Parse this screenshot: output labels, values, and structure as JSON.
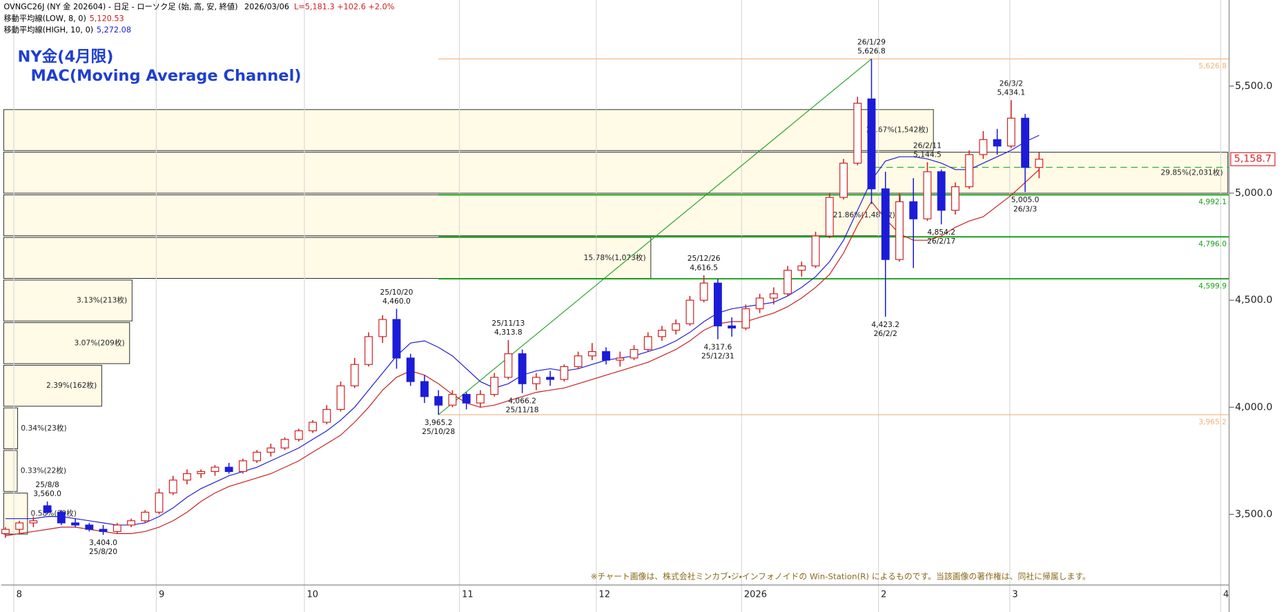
{
  "header": {
    "title": "OVNGC26J (NY 金 202604) - 日足 - ローソク足 (始, 高, 安, 終値)",
    "date": "2026/03/06",
    "quote": "L=5,181.3 +102.6 +2.0%",
    "ma_low_label": "移動平均線(LOW, 8, 0)",
    "ma_low_value": "5,120.53",
    "ma_high_label": "移動平均線(HIGH, 10, 0)",
    "ma_high_value": "5,272.08"
  },
  "chart_data": {
    "type": "candlestick",
    "title": "NY金(4月限)",
    "subtitle": "MAC(Moving Average Channel)",
    "xlim": [
      -0.3,
      87.6
    ],
    "xticks": [
      {
        "value": 0.6,
        "label": "8"
      },
      {
        "value": 10.8,
        "label": "9"
      },
      {
        "value": 21.4,
        "label": "10"
      },
      {
        "value": 32.5,
        "label": "11"
      },
      {
        "value": 42.3,
        "label": "12"
      },
      {
        "value": 52.7,
        "label": "2026"
      },
      {
        "value": 62.5,
        "label": "2"
      },
      {
        "value": 71.9,
        "label": "3"
      },
      {
        "value": 87.0,
        "label": "4"
      }
    ],
    "ylim": [
      3170,
      5902
    ],
    "yticks": [
      {
        "value": 3500,
        "label": "3,500.0"
      },
      {
        "value": 4000,
        "label": "4,000.0"
      },
      {
        "value": 4500,
        "label": "4,500.0"
      },
      {
        "value": 5000,
        "label": "5,000.0"
      },
      {
        "value": 5500,
        "label": "5,500.0"
      }
    ],
    "up_color": "#d02020",
    "down_color": "#1c1cd8",
    "categories": [
      null,
      null,
      null,
      "25/8/8",
      null,
      null,
      null,
      "25/8/20",
      null,
      null,
      null,
      null,
      null,
      null,
      null,
      null,
      null,
      null,
      null,
      null,
      null,
      null,
      null,
      null,
      null,
      null,
      null,
      null,
      "25/10/20",
      null,
      null,
      "25/10/28",
      null,
      null,
      null,
      null,
      "25/11/13",
      "25/11/18",
      null,
      null,
      null,
      null,
      null,
      null,
      null,
      null,
      null,
      null,
      null,
      null,
      "25/12/26",
      "25/12/31",
      null,
      null,
      null,
      null,
      null,
      null,
      null,
      null,
      null,
      null,
      "26/1/29",
      "26/2/2",
      null,
      null,
      "26/2/11",
      "26/2/17",
      null,
      null,
      null,
      null,
      "26/3/2",
      "26/3/3",
      null
    ],
    "candles": [
      [
        3410,
        3440,
        3390,
        3430
      ],
      [
        3430,
        3470,
        3410,
        3460
      ],
      [
        3460,
        3490,
        3440,
        3470
      ],
      [
        3540,
        3560,
        3500,
        3510
      ],
      [
        3510,
        3520,
        3450,
        3460
      ],
      [
        3460,
        3480,
        3440,
        3450
      ],
      [
        3450,
        3460,
        3420,
        3430
      ],
      [
        3430,
        3450,
        3404,
        3420
      ],
      [
        3420,
        3460,
        3410,
        3450
      ],
      [
        3450,
        3480,
        3440,
        3470
      ],
      [
        3470,
        3520,
        3460,
        3510
      ],
      [
        3510,
        3620,
        3500,
        3600
      ],
      [
        3600,
        3680,
        3590,
        3660
      ],
      [
        3660,
        3710,
        3640,
        3690
      ],
      [
        3690,
        3710,
        3670,
        3700
      ],
      [
        3700,
        3730,
        3680,
        3720
      ],
      [
        3720,
        3740,
        3690,
        3700
      ],
      [
        3700,
        3760,
        3690,
        3750
      ],
      [
        3750,
        3800,
        3740,
        3790
      ],
      [
        3790,
        3830,
        3770,
        3810
      ],
      [
        3810,
        3860,
        3800,
        3850
      ],
      [
        3850,
        3900,
        3840,
        3890
      ],
      [
        3890,
        3940,
        3880,
        3930
      ],
      [
        3930,
        4010,
        3920,
        3990
      ],
      [
        3990,
        4120,
        3980,
        4100
      ],
      [
        4100,
        4230,
        4090,
        4200
      ],
      [
        4200,
        4350,
        4190,
        4330
      ],
      [
        4330,
        4430,
        4300,
        4410
      ],
      [
        4410,
        4460,
        4180,
        4230
      ],
      [
        4230,
        4250,
        4100,
        4120
      ],
      [
        4120,
        4150,
        4020,
        4050
      ],
      [
        4050,
        4080,
        3965.2,
        4010
      ],
      [
        4010,
        4080,
        4000,
        4060
      ],
      [
        4060,
        4070,
        3990,
        4020
      ],
      [
        4020,
        4080,
        4000,
        4060
      ],
      [
        4060,
        4160,
        4050,
        4140
      ],
      [
        4140,
        4313.8,
        4130,
        4250
      ],
      [
        4250,
        4270,
        4066.2,
        4110
      ],
      [
        4110,
        4160,
        4080,
        4140
      ],
      [
        4140,
        4170,
        4100,
        4130
      ],
      [
        4130,
        4200,
        4120,
        4190
      ],
      [
        4190,
        4260,
        4180,
        4240
      ],
      [
        4240,
        4300,
        4220,
        4260
      ],
      [
        4260,
        4280,
        4200,
        4220
      ],
      [
        4220,
        4260,
        4190,
        4230
      ],
      [
        4230,
        4290,
        4220,
        4270
      ],
      [
        4270,
        4350,
        4260,
        4330
      ],
      [
        4330,
        4380,
        4310,
        4360
      ],
      [
        4360,
        4410,
        4340,
        4390
      ],
      [
        4390,
        4520,
        4380,
        4500
      ],
      [
        4500,
        4616.5,
        4490,
        4580
      ],
      [
        4580,
        4600,
        4317.6,
        4380
      ],
      [
        4380,
        4420,
        4330,
        4370
      ],
      [
        4370,
        4480,
        4360,
        4460
      ],
      [
        4460,
        4530,
        4440,
        4510
      ],
      [
        4510,
        4560,
        4480,
        4530
      ],
      [
        4530,
        4660,
        4520,
        4640
      ],
      [
        4640,
        4680,
        4610,
        4660
      ],
      [
        4660,
        4820,
        4650,
        4800
      ],
      [
        4800,
        5000,
        4790,
        4980
      ],
      [
        4980,
        5160,
        4970,
        5140
      ],
      [
        5140,
        5450,
        5130,
        5420
      ],
      [
        5440,
        5626.8,
        4950,
        5020
      ],
      [
        5020,
        5100,
        4423.2,
        4690
      ],
      [
        4690,
        5000,
        4680,
        4960
      ],
      [
        4960,
        5070,
        4650,
        4880
      ],
      [
        4880,
        5144.5,
        4870,
        5100
      ],
      [
        5100,
        5110,
        4854.2,
        4920
      ],
      [
        4920,
        5050,
        4900,
        5030
      ],
      [
        5030,
        5200,
        5020,
        5180
      ],
      [
        5180,
        5290,
        5160,
        5250
      ],
      [
        5250,
        5300,
        5180,
        5220
      ],
      [
        5220,
        5434.1,
        5210,
        5350
      ],
      [
        5350,
        5370,
        5005,
        5120
      ],
      [
        5120,
        5190,
        5070,
        5158.7
      ]
    ],
    "high_labels": [
      null,
      null,
      null,
      "3,560.0",
      null,
      null,
      null,
      null,
      null,
      null,
      null,
      null,
      null,
      null,
      null,
      null,
      null,
      null,
      null,
      null,
      null,
      null,
      null,
      null,
      null,
      null,
      null,
      null,
      "4,460.0",
      null,
      null,
      null,
      null,
      null,
      null,
      null,
      "4,313.8",
      null,
      null,
      null,
      null,
      null,
      null,
      null,
      null,
      null,
      null,
      null,
      null,
      null,
      "4,616.5",
      null,
      null,
      null,
      null,
      null,
      null,
      null,
      null,
      null,
      null,
      null,
      "5,626.8",
      null,
      null,
      null,
      "5,144.5",
      null,
      null,
      null,
      null,
      null,
      "5,434.1",
      null,
      null
    ],
    "low_labels": [
      null,
      null,
      null,
      null,
      null,
      null,
      null,
      "3,404.0",
      null,
      null,
      null,
      null,
      null,
      null,
      null,
      null,
      null,
      null,
      null,
      null,
      null,
      null,
      null,
      null,
      null,
      null,
      null,
      null,
      null,
      null,
      null,
      "3,965.2",
      null,
      null,
      null,
      null,
      null,
      "4,066.2",
      null,
      null,
      null,
      null,
      null,
      null,
      null,
      null,
      null,
      null,
      null,
      null,
      null,
      "4,317.6",
      null,
      null,
      null,
      null,
      null,
      null,
      null,
      null,
      null,
      null,
      null,
      "4,423.2",
      null,
      null,
      null,
      "4,854.2",
      null,
      null,
      null,
      null,
      null,
      "5,005.0",
      null
    ],
    "series": [
      {
        "name": "移動平均線(HIGH, 10, 0)",
        "color": "#1c1cd8",
        "values": [
          3480,
          3480,
          3480,
          3490,
          3490,
          3480,
          3470,
          3460,
          3450,
          3450,
          3460,
          3490,
          3530,
          3580,
          3620,
          3650,
          3680,
          3700,
          3720,
          3750,
          3780,
          3810,
          3850,
          3890,
          3940,
          4000,
          4080,
          4160,
          4240,
          4300,
          4310,
          4280,
          4240,
          4180,
          4120,
          4090,
          4110,
          4150,
          4170,
          4180,
          4170,
          4180,
          4200,
          4220,
          4230,
          4240,
          4260,
          4280,
          4310,
          4350,
          4400,
          4440,
          4460,
          4470,
          4480,
          4490,
          4520,
          4560,
          4610,
          4680,
          4780,
          4920,
          5060,
          5150,
          5170,
          5170,
          5160,
          5140,
          5110,
          5110,
          5140,
          5170,
          5200,
          5240,
          5270
        ]
      },
      {
        "name": "移動平均線(LOW, 8, 0)",
        "color": "#c81e1e",
        "values": [
          3400,
          3410,
          3420,
          3430,
          3440,
          3440,
          3430,
          3420,
          3410,
          3410,
          3420,
          3440,
          3470,
          3510,
          3560,
          3600,
          3630,
          3650,
          3670,
          3690,
          3720,
          3750,
          3790,
          3830,
          3870,
          3930,
          4000,
          4080,
          4140,
          4170,
          4150,
          4110,
          4060,
          4020,
          4000,
          4010,
          4030,
          4050,
          4070,
          4080,
          4090,
          4110,
          4130,
          4150,
          4170,
          4190,
          4210,
          4240,
          4270,
          4310,
          4360,
          4390,
          4400,
          4400,
          4420,
          4440,
          4470,
          4510,
          4560,
          4620,
          4720,
          4850,
          4960,
          4880,
          4810,
          4780,
          4780,
          4800,
          4840,
          4870,
          4890,
          4940,
          4990,
          5050,
          5110
        ]
      }
    ],
    "levels": {
      "values": [
        5626.8,
        4992.1,
        4796.0,
        4599.9,
        3965.2
      ],
      "value_labels": [
        "5,626.8",
        "4,992.1",
        "4,796.0",
        "4,599.9",
        "3,965.2"
      ],
      "colors": [
        "#f2b27a",
        "#19a019",
        "#19a019",
        "#19a019",
        "#f2b27a"
      ]
    },
    "dashed_level": {
      "value": 5120.53,
      "color": "#3cb04a"
    },
    "last_price": {
      "value": 5158.7,
      "label": "5,158.7",
      "color": "#e02020"
    },
    "volume_profile": {
      "bins": [
        3404,
        3603,
        3802,
        4001,
        4200,
        4399,
        4598,
        4797,
        4996,
        5195,
        5394
      ],
      "values": [
        0.58,
        0.33,
        0.34,
        2.39,
        3.07,
        3.13,
        15.78,
        21.86,
        29.85,
        22.67
      ],
      "value_labels": [
        "0.58%(39枚)",
        "0.33%(22枚)",
        "0.34%(23枚)",
        "2.39%(162枚)",
        "3.07%(209枚)",
        "3.13%(213枚)",
        "15.78%(1,073枚)",
        "21.86%(1,487枚)",
        "29.85%(2,031枚)",
        "22.67%(1,542枚)"
      ],
      "color": "#fffbe6"
    }
  },
  "footer": "※チャート画像は、株式会社ミンカブ・ジ・インフォノイドの Win-Station(R) によるものです。当該画像の著作権は、同社に帰属します。"
}
